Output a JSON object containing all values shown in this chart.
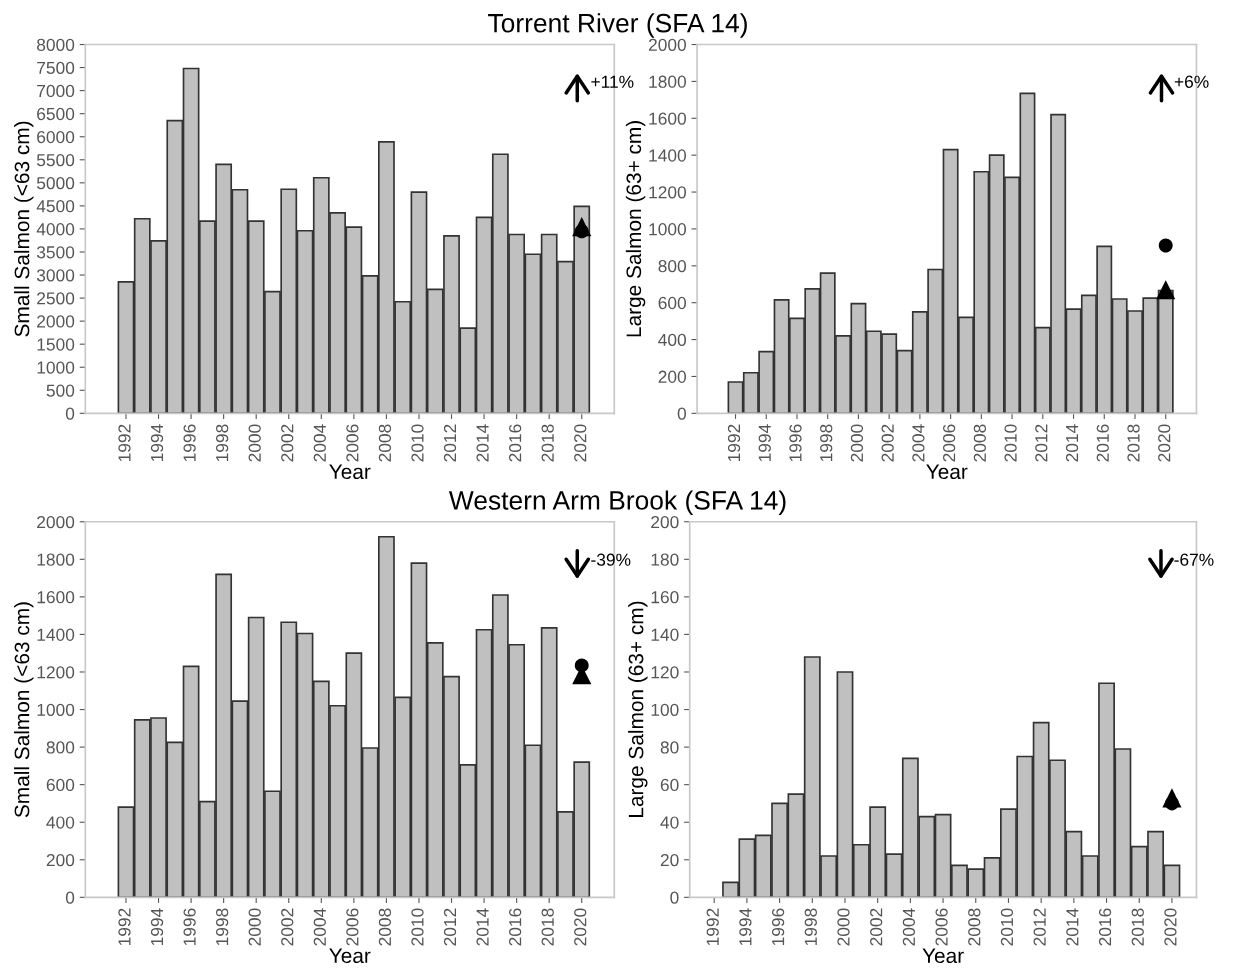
{
  "chart_data": [
    {
      "type": "bar",
      "title": "Torrent River (SFA 14)",
      "xlabel": "Year",
      "ylabel": "Small Salmon (<63 cm)",
      "x": [
        1992,
        1993,
        1994,
        1995,
        1996,
        1997,
        1998,
        1999,
        2000,
        2001,
        2002,
        2003,
        2004,
        2005,
        2006,
        2007,
        2008,
        2009,
        2010,
        2011,
        2012,
        2013,
        2014,
        2015,
        2016,
        2017,
        2018,
        2019,
        2020
      ],
      "series": [
        {
          "color": "#c0c0c0",
          "values": [
            2850,
            4220,
            3740,
            6350,
            7480,
            4170,
            5400,
            4850,
            4170,
            2640,
            4860,
            3960,
            5110,
            4350,
            4040,
            2980,
            5890,
            2420,
            4800,
            2690,
            3850,
            1850,
            4250,
            5620,
            3880,
            3450,
            3880,
            3290,
            4490
          ]
        },
        {
          "type": "scatter",
          "marker": "triangle",
          "color": "#000000",
          "x": [
            2020
          ],
          "values": [
            4050
          ]
        },
        {
          "type": "scatter",
          "marker": "circle",
          "color": "#000000",
          "x": [
            2020
          ],
          "values": [
            3950
          ]
        }
      ],
      "annotations": [
        "+11%"
      ],
      "xlim": [
        1989.5,
        2022
      ],
      "xticks": [
        1992,
        1994,
        1996,
        1998,
        2000,
        2002,
        2004,
        2006,
        2008,
        2010,
        2012,
        2014,
        2016,
        2018,
        2020
      ],
      "ylim": [
        0,
        8000
      ],
      "yticks": [
        0,
        500,
        1000,
        1500,
        2000,
        2500,
        3000,
        3500,
        4000,
        4500,
        5000,
        5500,
        6000,
        6500,
        7000,
        7500,
        8000
      ],
      "grid": false,
      "legend": false
    },
    {
      "type": "bar",
      "xlabel": "Year",
      "ylabel": "Large Salmon (63+ cm)",
      "x": [
        1992,
        1993,
        1994,
        1995,
        1996,
        1997,
        1998,
        1999,
        2000,
        2001,
        2002,
        2003,
        2004,
        2005,
        2006,
        2007,
        2008,
        2009,
        2010,
        2011,
        2012,
        2013,
        2014,
        2015,
        2016,
        2017,
        2018,
        2019,
        2020
      ],
      "series": [
        {
          "color": "#c0c0c0",
          "values": [
            170,
            220,
            335,
            615,
            515,
            675,
            760,
            420,
            595,
            445,
            430,
            340,
            550,
            780,
            1430,
            520,
            1310,
            1400,
            1280,
            1735,
            465,
            1620,
            565,
            640,
            905,
            620,
            555,
            625,
            665
          ]
        },
        {
          "type": "scatter",
          "marker": "triangle",
          "color": "#000000",
          "x": [
            2020
          ],
          "values": [
            670
          ]
        },
        {
          "type": "scatter",
          "marker": "circle",
          "color": "#000000",
          "x": [
            2020
          ],
          "values": [
            910
          ]
        }
      ],
      "annotations": [
        "+6%"
      ],
      "xlim": [
        1989.5,
        2022
      ],
      "xticks": [
        1992,
        1994,
        1996,
        1998,
        2000,
        2002,
        2004,
        2006,
        2008,
        2010,
        2012,
        2014,
        2016,
        2018,
        2020
      ],
      "ylim": [
        0,
        2000
      ],
      "yticks": [
        0,
        200,
        400,
        600,
        800,
        1000,
        1200,
        1400,
        1600,
        1800,
        2000
      ],
      "grid": false,
      "legend": false
    },
    {
      "type": "bar",
      "title": "Western Arm Brook (SFA 14)",
      "xlabel": "Year",
      "ylabel": "Small Salmon (<63 cm)",
      "x": [
        1992,
        1993,
        1994,
        1995,
        1996,
        1997,
        1998,
        1999,
        2000,
        2001,
        2002,
        2003,
        2004,
        2005,
        2006,
        2007,
        2008,
        2009,
        2010,
        2011,
        2012,
        2013,
        2014,
        2015,
        2016,
        2017,
        2018,
        2019,
        2020
      ],
      "series": [
        {
          "color": "#c0c0c0",
          "values": [
            480,
            945,
            955,
            825,
            1230,
            510,
            1720,
            1045,
            1490,
            565,
            1465,
            1405,
            1150,
            1020,
            1300,
            795,
            1920,
            1065,
            1780,
            1355,
            1175,
            705,
            1425,
            1610,
            1345,
            810,
            1435,
            455,
            720
          ]
        },
        {
          "type": "scatter",
          "marker": "triangle",
          "color": "#000000",
          "x": [
            2020
          ],
          "values": [
            1185
          ]
        },
        {
          "type": "scatter",
          "marker": "circle",
          "color": "#000000",
          "x": [
            2020
          ],
          "values": [
            1235
          ]
        }
      ],
      "annotations": [
        "-39%"
      ],
      "xlim": [
        1989.5,
        2022
      ],
      "xticks": [
        1992,
        1994,
        1996,
        1998,
        2000,
        2002,
        2004,
        2006,
        2008,
        2010,
        2012,
        2014,
        2016,
        2018,
        2020
      ],
      "ylim": [
        0,
        2000
      ],
      "yticks": [
        0,
        200,
        400,
        600,
        800,
        1000,
        1200,
        1400,
        1600,
        1800,
        2000
      ],
      "grid": false,
      "legend": false
    },
    {
      "type": "bar",
      "xlabel": "Year",
      "ylabel": "Large Salmon (63+ cm)",
      "series": [
        {
          "color": "#c0c0c0",
          "x": [
            1993,
            1994,
            1995,
            1996,
            1997,
            1998,
            1999,
            2000,
            2001,
            2002,
            2003,
            2004,
            2005,
            2006,
            2007,
            2008,
            2009,
            2010,
            2011,
            2012,
            2013,
            2014,
            2015,
            2016,
            2017,
            2018,
            2019,
            2020
          ],
          "values": [
            8,
            31,
            33,
            50,
            55,
            128,
            22,
            120,
            28,
            48,
            23,
            74,
            43,
            44,
            17,
            15,
            21,
            47,
            75,
            93,
            73,
            35,
            22,
            114,
            79,
            27,
            35,
            17
          ]
        },
        {
          "type": "scatter",
          "marker": "triangle",
          "color": "#000000",
          "x": [
            2020
          ],
          "values": [
            53
          ]
        },
        {
          "type": "scatter",
          "marker": "circle",
          "color": "#000000",
          "x": [
            2020
          ],
          "values": [
            50
          ]
        }
      ],
      "annotations": [
        "-67%"
      ],
      "xlim": [
        1990.5,
        2021.5
      ],
      "xticks": [
        1992,
        1994,
        1996,
        1998,
        2000,
        2002,
        2004,
        2006,
        2008,
        2010,
        2012,
        2014,
        2016,
        2018,
        2020
      ],
      "ylim": [
        0,
        200
      ],
      "yticks": [
        0,
        20,
        40,
        60,
        80,
        100,
        120,
        140,
        160,
        180,
        200
      ],
      "grid": false,
      "legend": false
    }
  ]
}
